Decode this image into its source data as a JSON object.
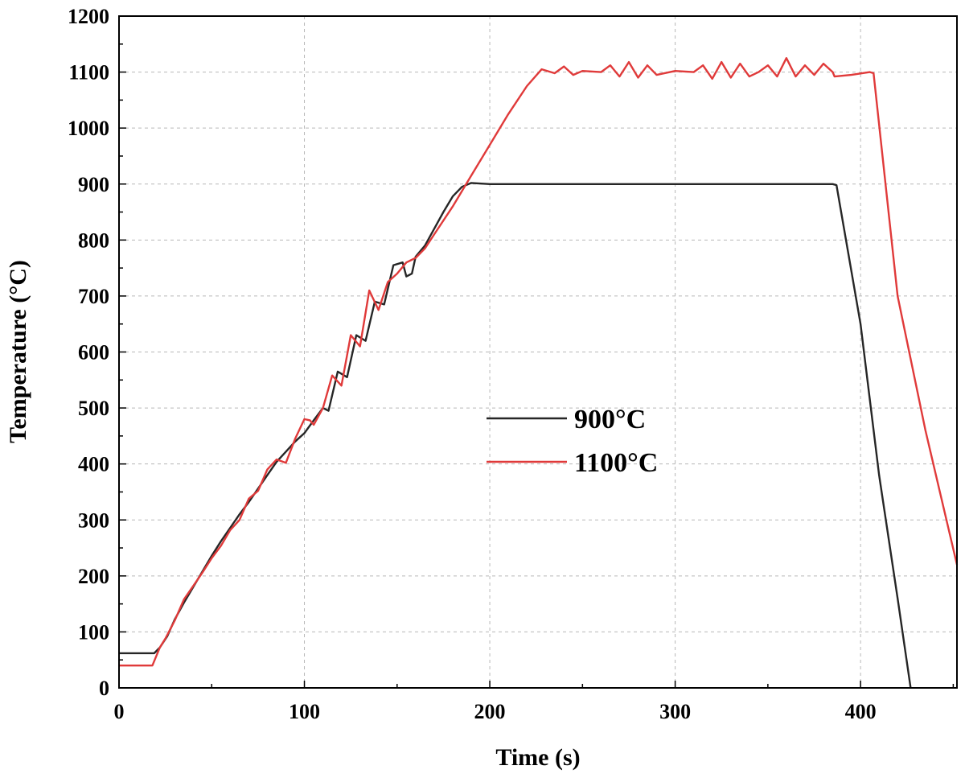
{
  "chart_data": {
    "type": "line",
    "title": "",
    "xlabel": "Time (s)",
    "ylabel": "Temperature (°C)",
    "xlim": [
      0,
      452
    ],
    "ylim": [
      0,
      1200
    ],
    "xticks": [
      0,
      100,
      200,
      300,
      400
    ],
    "yticks": [
      0,
      100,
      200,
      300,
      400,
      500,
      600,
      700,
      800,
      900,
      1000,
      1100,
      1200
    ],
    "grid": true,
    "legend_position": "center",
    "series": [
      {
        "name": "900°C",
        "color": "#262626",
        "x": [
          0,
          19,
          22,
          26,
          30,
          35,
          40,
          45,
          50,
          55,
          60,
          65,
          70,
          75,
          80,
          85,
          90,
          95,
          100,
          105,
          110,
          113,
          118,
          123,
          128,
          133,
          138,
          143,
          148,
          153,
          155,
          158,
          160,
          165,
          170,
          175,
          180,
          185,
          190,
          200,
          250,
          300,
          350,
          380,
          385,
          387,
          400,
          410,
          420,
          427
        ],
        "y": [
          62,
          62,
          72,
          92,
          122,
          152,
          180,
          208,
          236,
          262,
          286,
          310,
          332,
          356,
          380,
          404,
          422,
          440,
          455,
          478,
          500,
          495,
          565,
          555,
          630,
          620,
          690,
          685,
          755,
          760,
          735,
          740,
          770,
          790,
          820,
          850,
          878,
          895,
          902,
          900,
          900,
          900,
          900,
          900,
          900,
          898,
          650,
          380,
          160,
          0
        ]
      },
      {
        "name": "1100°C",
        "color": "#e03a3a",
        "x": [
          0,
          18,
          22,
          25,
          30,
          35,
          40,
          45,
          50,
          55,
          60,
          65,
          70,
          75,
          80,
          85,
          90,
          95,
          100,
          103,
          105,
          110,
          115,
          120,
          125,
          130,
          135,
          140,
          145,
          150,
          155,
          160,
          165,
          170,
          180,
          190,
          200,
          210,
          220,
          228,
          235,
          240,
          245,
          250,
          260,
          265,
          270,
          275,
          280,
          285,
          290,
          300,
          310,
          315,
          320,
          325,
          330,
          335,
          340,
          345,
          350,
          355,
          360,
          365,
          370,
          375,
          380,
          385,
          386,
          395,
          405,
          407,
          420,
          435,
          452
        ],
        "y": [
          40,
          40,
          72,
          88,
          120,
          158,
          182,
          206,
          232,
          254,
          282,
          300,
          338,
          352,
          390,
          408,
          402,
          445,
          480,
          478,
          470,
          500,
          558,
          540,
          630,
          610,
          710,
          675,
          725,
          740,
          760,
          768,
          785,
          810,
          860,
          915,
          970,
          1025,
          1075,
          1105,
          1098,
          1110,
          1095,
          1102,
          1100,
          1112,
          1092,
          1118,
          1090,
          1112,
          1095,
          1102,
          1100,
          1112,
          1088,
          1118,
          1090,
          1115,
          1092,
          1100,
          1112,
          1092,
          1125,
          1092,
          1112,
          1095,
          1115,
          1100,
          1092,
          1095,
          1100,
          1098,
          700,
          460,
          220
        ]
      }
    ]
  }
}
